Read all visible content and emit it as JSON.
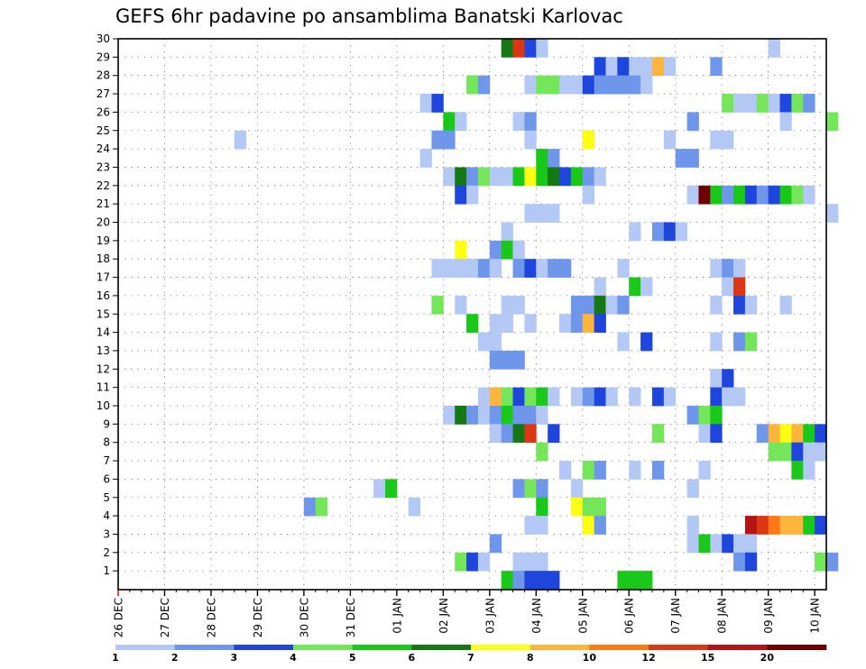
{
  "title": "GEFS 6hr padavine po ansamblima Banatski Karlovac",
  "colors": {
    "1": "#b4c8f5",
    "2": "#6e96eb",
    "3": "#1e46dc",
    "4": "#73e65a",
    "5": "#19c819",
    "6": "#147814",
    "7": "#ffff14",
    "8": "#ffb43c",
    "10": "#ff7814",
    "12": "#dc3714",
    "15": "#b41414",
    "20": "#6e0000"
  },
  "chart_data": {
    "type": "heatmap",
    "title": "GEFS 6hr padavine po ansamblima Banatski Karlovac",
    "x_tick_labels": [
      "26 DEC",
      "27 DEC",
      "28 DEC",
      "29 DEC",
      "30 DEC",
      "31 DEC",
      "01 JAN",
      "02 JAN",
      "03 JAN",
      "04 JAN",
      "05 JAN",
      "06 JAN",
      "07 JAN",
      "08 JAN",
      "09 JAN",
      "10 JAN"
    ],
    "x_unit": "6-hour step since 26 DEC 00 UTC",
    "x_range": [
      0,
      61
    ],
    "y_tick_labels": [
      "1",
      "2",
      "3",
      "4",
      "5",
      "6",
      "7",
      "8",
      "9",
      "10",
      "11",
      "12",
      "13",
      "14",
      "15",
      "16",
      "17",
      "18",
      "19",
      "20",
      "21",
      "22",
      "23",
      "24",
      "25",
      "26",
      "27",
      "28",
      "29",
      "30"
    ],
    "y_range": [
      0,
      30
    ],
    "grid": "dotted",
    "legend": {
      "placement": "bottom",
      "levels": [
        1,
        2,
        3,
        4,
        5,
        6,
        7,
        8,
        10,
        12,
        15,
        20
      ],
      "labels": [
        "1",
        "2",
        "3",
        "4",
        "5",
        "6",
        "7",
        "8",
        "10",
        "12",
        "15",
        "20"
      ]
    },
    "rows": [
      {
        "member": 30,
        "cells": [
          [
            33,
            6
          ],
          [
            34,
            12
          ],
          [
            35,
            3
          ],
          [
            36,
            1
          ],
          [
            56,
            1
          ]
        ]
      },
      {
        "member": 29,
        "cells": [
          [
            41,
            3
          ],
          [
            42,
            1
          ],
          [
            43,
            3
          ],
          [
            44,
            1
          ],
          [
            45,
            1
          ],
          [
            46,
            8
          ],
          [
            47,
            1
          ],
          [
            51,
            2
          ]
        ]
      },
      {
        "member": 28,
        "cells": [
          [
            30,
            4
          ],
          [
            31,
            2
          ],
          [
            35,
            1
          ],
          [
            36,
            4
          ],
          [
            37,
            4
          ],
          [
            38,
            1
          ],
          [
            39,
            1
          ],
          [
            40,
            3
          ],
          [
            41,
            2
          ],
          [
            42,
            2
          ],
          [
            43,
            2
          ],
          [
            44,
            2
          ],
          [
            45,
            1
          ]
        ]
      },
      {
        "member": 27,
        "cells": [
          [
            26,
            1
          ],
          [
            27,
            3
          ],
          [
            52,
            4
          ],
          [
            53,
            1
          ],
          [
            54,
            1
          ],
          [
            55,
            4
          ],
          [
            56,
            1
          ],
          [
            57,
            3
          ],
          [
            58,
            4
          ],
          [
            59,
            2
          ]
        ]
      },
      {
        "member": 26,
        "cells": [
          [
            28,
            5
          ],
          [
            29,
            1
          ],
          [
            34,
            1
          ],
          [
            35,
            2
          ],
          [
            49,
            2
          ],
          [
            57,
            1
          ],
          [
            61,
            4
          ]
        ]
      },
      {
        "member": 25,
        "cells": [
          [
            10,
            1
          ],
          [
            27,
            2
          ],
          [
            28,
            2
          ],
          [
            35,
            1
          ],
          [
            40,
            7
          ],
          [
            47,
            1
          ],
          [
            51,
            1
          ],
          [
            52,
            1
          ]
        ]
      },
      {
        "member": 24,
        "cells": [
          [
            26,
            1
          ],
          [
            36,
            5
          ],
          [
            37,
            2
          ],
          [
            48,
            2
          ],
          [
            49,
            2
          ]
        ]
      },
      {
        "member": 23,
        "cells": [
          [
            28,
            1
          ],
          [
            29,
            6
          ],
          [
            30,
            2
          ],
          [
            31,
            4
          ],
          [
            32,
            1
          ],
          [
            33,
            1
          ],
          [
            34,
            5
          ],
          [
            35,
            7
          ],
          [
            36,
            5
          ],
          [
            37,
            6
          ],
          [
            38,
            3
          ],
          [
            39,
            5
          ],
          [
            40,
            2
          ],
          [
            41,
            1
          ]
        ]
      },
      {
        "member": 22,
        "cells": [
          [
            29,
            3
          ],
          [
            30,
            1
          ],
          [
            40,
            1
          ],
          [
            49,
            1
          ],
          [
            50,
            20
          ],
          [
            51,
            5
          ],
          [
            52,
            2
          ],
          [
            53,
            5
          ],
          [
            54,
            3
          ],
          [
            55,
            2
          ],
          [
            56,
            3
          ],
          [
            57,
            5
          ],
          [
            58,
            4
          ],
          [
            59,
            1
          ]
        ]
      },
      {
        "member": 21,
        "cells": [
          [
            35,
            1
          ],
          [
            36,
            1
          ],
          [
            37,
            1
          ],
          [
            61,
            1
          ]
        ]
      },
      {
        "member": 20,
        "cells": [
          [
            33,
            1
          ],
          [
            44,
            1
          ],
          [
            46,
            2
          ],
          [
            47,
            3
          ],
          [
            48,
            1
          ]
        ]
      },
      {
        "member": 19,
        "cells": [
          [
            29,
            7
          ],
          [
            32,
            2
          ],
          [
            33,
            5
          ],
          [
            34,
            1
          ]
        ]
      },
      {
        "member": 18,
        "cells": [
          [
            27,
            1
          ],
          [
            28,
            1
          ],
          [
            29,
            1
          ],
          [
            30,
            1
          ],
          [
            31,
            2
          ],
          [
            32,
            1
          ],
          [
            34,
            2
          ],
          [
            35,
            3
          ],
          [
            36,
            1
          ],
          [
            37,
            2
          ],
          [
            38,
            2
          ],
          [
            43,
            1
          ],
          [
            51,
            1
          ],
          [
            52,
            2
          ],
          [
            53,
            1
          ]
        ]
      },
      {
        "member": 17,
        "cells": [
          [
            41,
            1
          ],
          [
            44,
            5
          ],
          [
            45,
            1
          ],
          [
            52,
            1
          ],
          [
            53,
            12
          ]
        ]
      },
      {
        "member": 16,
        "cells": [
          [
            27,
            4
          ],
          [
            29,
            1
          ],
          [
            33,
            1
          ],
          [
            34,
            1
          ],
          [
            39,
            2
          ],
          [
            40,
            2
          ],
          [
            41,
            6
          ],
          [
            42,
            1
          ],
          [
            43,
            2
          ],
          [
            51,
            1
          ],
          [
            53,
            3
          ],
          [
            54,
            1
          ],
          [
            57,
            1
          ]
        ]
      },
      {
        "member": 15,
        "cells": [
          [
            30,
            5
          ],
          [
            32,
            1
          ],
          [
            33,
            1
          ],
          [
            35,
            1
          ],
          [
            38,
            1
          ],
          [
            39,
            2
          ],
          [
            40,
            8
          ],
          [
            41,
            3
          ]
        ]
      },
      {
        "member": 14,
        "cells": [
          [
            31,
            1
          ],
          [
            32,
            1
          ],
          [
            43,
            1
          ],
          [
            45,
            3
          ],
          [
            51,
            1
          ],
          [
            53,
            2
          ],
          [
            54,
            4
          ]
        ]
      },
      {
        "member": 13,
        "cells": [
          [
            32,
            2
          ],
          [
            33,
            2
          ],
          [
            34,
            2
          ]
        ]
      },
      {
        "member": 12,
        "cells": [
          [
            51,
            1
          ],
          [
            52,
            3
          ]
        ]
      },
      {
        "member": 11,
        "cells": [
          [
            31,
            1
          ],
          [
            32,
            8
          ],
          [
            33,
            4
          ],
          [
            34,
            3
          ],
          [
            35,
            4
          ],
          [
            36,
            5
          ],
          [
            37,
            1
          ],
          [
            39,
            1
          ],
          [
            40,
            2
          ],
          [
            41,
            3
          ],
          [
            42,
            1
          ],
          [
            44,
            1
          ],
          [
            46,
            3
          ],
          [
            47,
            1
          ],
          [
            51,
            3
          ],
          [
            52,
            1
          ],
          [
            53,
            1
          ]
        ]
      },
      {
        "member": 10,
        "cells": [
          [
            28,
            1
          ],
          [
            29,
            6
          ],
          [
            30,
            2
          ],
          [
            31,
            1
          ],
          [
            32,
            2
          ],
          [
            33,
            5
          ],
          [
            34,
            2
          ],
          [
            35,
            2
          ],
          [
            36,
            1
          ],
          [
            49,
            2
          ],
          [
            50,
            4
          ],
          [
            51,
            5
          ]
        ]
      },
      {
        "member": 9,
        "cells": [
          [
            32,
            1
          ],
          [
            33,
            2
          ],
          [
            34,
            6
          ],
          [
            35,
            12
          ],
          [
            37,
            3
          ],
          [
            46,
            4
          ],
          [
            50,
            1
          ],
          [
            51,
            3
          ],
          [
            55,
            2
          ],
          [
            56,
            8
          ],
          [
            57,
            7
          ],
          [
            58,
            8
          ],
          [
            59,
            5
          ],
          [
            60,
            3
          ]
        ]
      },
      {
        "member": 8,
        "cells": [
          [
            36,
            4
          ],
          [
            56,
            4
          ],
          [
            57,
            4
          ],
          [
            58,
            3
          ],
          [
            59,
            1
          ],
          [
            60,
            1
          ]
        ]
      },
      {
        "member": 7,
        "cells": [
          [
            38,
            1
          ],
          [
            40,
            4
          ],
          [
            41,
            2
          ],
          [
            44,
            1
          ],
          [
            46,
            2
          ],
          [
            50,
            1
          ],
          [
            58,
            5
          ],
          [
            59,
            1
          ]
        ]
      },
      {
        "member": 6,
        "cells": [
          [
            22,
            1
          ],
          [
            23,
            5
          ],
          [
            34,
            2
          ],
          [
            35,
            4
          ],
          [
            36,
            2
          ],
          [
            39,
            1
          ],
          [
            49,
            1
          ]
        ]
      },
      {
        "member": 5,
        "cells": [
          [
            16,
            2
          ],
          [
            17,
            4
          ],
          [
            25,
            1
          ],
          [
            36,
            5
          ],
          [
            39,
            7
          ],
          [
            40,
            4
          ],
          [
            41,
            4
          ]
        ]
      },
      {
        "member": 4,
        "cells": [
          [
            35,
            1
          ],
          [
            36,
            1
          ],
          [
            40,
            7
          ],
          [
            41,
            2
          ],
          [
            49,
            1
          ],
          [
            54,
            15
          ],
          [
            55,
            12
          ],
          [
            56,
            10
          ],
          [
            57,
            8
          ],
          [
            58,
            8
          ],
          [
            59,
            5
          ],
          [
            60,
            3
          ]
        ]
      },
      {
        "member": 3,
        "cells": [
          [
            32,
            2
          ],
          [
            49,
            1
          ],
          [
            50,
            5
          ],
          [
            51,
            1
          ],
          [
            52,
            3
          ],
          [
            53,
            1
          ],
          [
            54,
            1
          ]
        ]
      },
      {
        "member": 2,
        "cells": [
          [
            29,
            4
          ],
          [
            30,
            3
          ],
          [
            31,
            1
          ],
          [
            34,
            1
          ],
          [
            35,
            1
          ],
          [
            36,
            1
          ],
          [
            53,
            2
          ],
          [
            54,
            3
          ],
          [
            60,
            4
          ],
          [
            61,
            2
          ]
        ]
      },
      {
        "member": 1,
        "cells": [
          [
            33,
            5
          ],
          [
            34,
            2
          ],
          [
            35,
            3
          ],
          [
            36,
            3
          ],
          [
            37,
            3
          ],
          [
            43,
            5
          ],
          [
            44,
            5
          ],
          [
            45,
            5
          ]
        ]
      }
    ]
  }
}
